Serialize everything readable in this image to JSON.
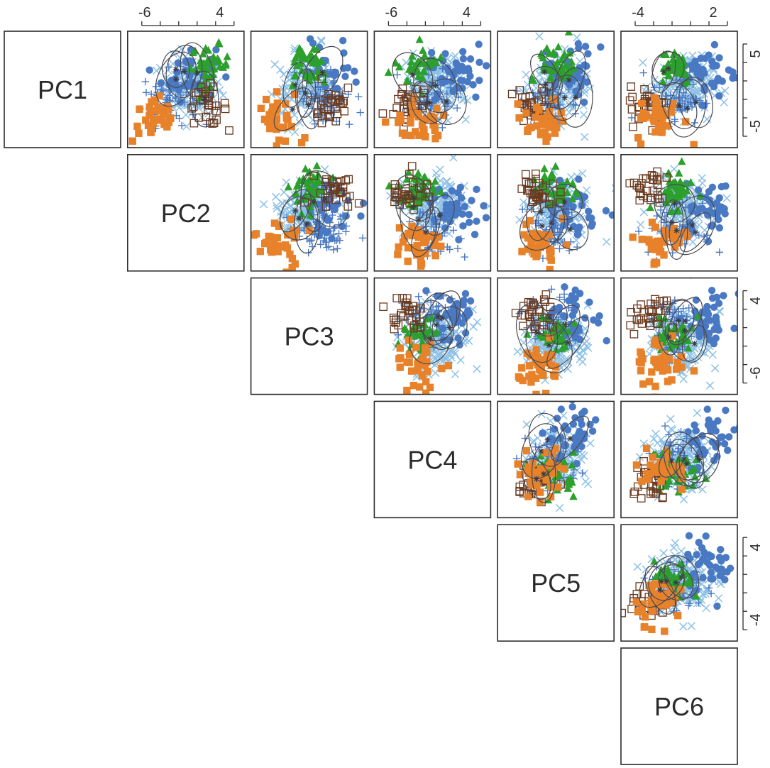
{
  "chart_data": {
    "type": "scatter",
    "variables": [
      "PC1",
      "PC2",
      "PC3",
      "PC4",
      "PC5",
      "PC6"
    ],
    "layout": "upper-triangle scatterplot matrix",
    "groups": [
      {
        "marker": "filled-circle",
        "color": "#4a79c4"
      },
      {
        "marker": "plus",
        "color": "#4a79c4"
      },
      {
        "marker": "cross",
        "color": "#8ec1e6"
      },
      {
        "marker": "filled-triangle",
        "color": "#2ca02c"
      },
      {
        "marker": "filled-square",
        "color": "#e8822a"
      },
      {
        "marker": "open-square",
        "color": "#6b3a1f"
      }
    ],
    "top_axis": [
      {
        "column": 1,
        "ticks": [
          "-6",
          "4"
        ]
      },
      {
        "column": 3,
        "ticks": [
          "-6",
          "4"
        ]
      },
      {
        "column": 5,
        "ticks": [
          "-4",
          "2"
        ]
      }
    ],
    "right_axis": [
      {
        "row": 0,
        "ticks": [
          "5",
          "-5"
        ]
      },
      {
        "row": 2,
        "ticks": [
          "4",
          "-6"
        ]
      },
      {
        "row": 4,
        "ticks": [
          "4",
          "-4"
        ]
      }
    ],
    "ellipses_per_panel": 5,
    "grid": false,
    "legend": "none"
  }
}
